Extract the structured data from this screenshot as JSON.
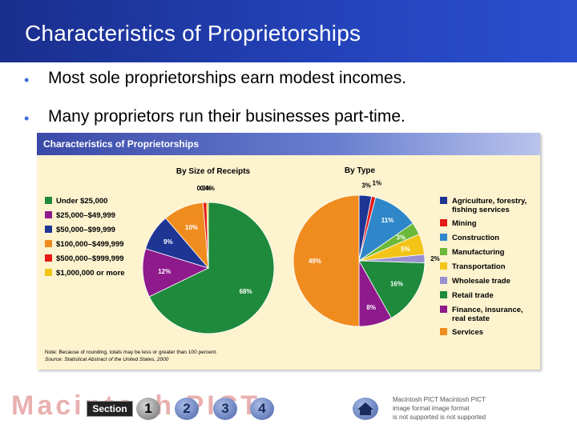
{
  "slide": {
    "title": "Characteristics of Proprietorships",
    "bullets": [
      "Most sole proprietorships earn modest incomes.",
      "Many proprietors run their businesses part-time."
    ]
  },
  "figure": {
    "title": "Characteristics of Proprietorships",
    "note": "Note: Because of rounding, totals may be less or greater than 100 percent.",
    "source": "Source: Statistical Abstract of the United States, 2000"
  },
  "chart_data": [
    {
      "type": "pie",
      "title": "By Size of Receipts",
      "legend_position": "left",
      "slices": [
        {
          "label": "Under $25,000",
          "value": 68,
          "display": "68%",
          "color": "#1f8a3c"
        },
        {
          "label": "$25,000–$49,999",
          "value": 12,
          "display": "12%",
          "color": "#8e1a8c"
        },
        {
          "label": "$50,000–$99,999",
          "value": 9,
          "display": "9%",
          "color": "#1e3594"
        },
        {
          "label": "$100,000–$499,999",
          "value": 10,
          "display": "10%",
          "color": "#f08c1e"
        },
        {
          "label": "$500,000–$999,999",
          "value": 0.9,
          "display": "0.9%",
          "color": "#e41b17"
        },
        {
          "label": "$1,000,000 or more",
          "value": 0.4,
          "display": "0.4%",
          "color": "#f2c418"
        }
      ]
    },
    {
      "type": "pie",
      "title": "By Type",
      "legend_position": "right",
      "slices": [
        {
          "label": "Agriculture, forestry, fishing services",
          "value": 3,
          "display": "3%",
          "color": "#1e3594"
        },
        {
          "label": "Mining",
          "value": 1,
          "display": "1%",
          "color": "#e41b17"
        },
        {
          "label": "Construction",
          "value": 11,
          "display": "11%",
          "color": "#2f86c8"
        },
        {
          "label": "Manufacturing",
          "value": 3,
          "display": "3%",
          "color": "#6cb83a"
        },
        {
          "label": "Transportation",
          "value": 5,
          "display": "5%",
          "color": "#f2c418"
        },
        {
          "label": "Wholesale trade",
          "value": 2,
          "display": "2%",
          "color": "#9a8fd0"
        },
        {
          "label": "Retail trade",
          "value": 16,
          "display": "16%",
          "color": "#1f8a3c"
        },
        {
          "label": "Finance, insurance, real estate",
          "value": 8,
          "display": "8%",
          "color": "#8e1a8c"
        },
        {
          "label": "Services",
          "value": 49,
          "display": "49%",
          "color": "#f08c1e"
        }
      ]
    }
  ],
  "footer": {
    "section_label": "Section",
    "section_buttons": [
      "1",
      "2",
      "3",
      "4"
    ],
    "active_section": "1",
    "ghost_text": "Macintosh PICT",
    "pict_lines": [
      "Macintosh PICT Macintosh PICT",
      "image format   image format",
      "is not supported is not supported"
    ]
  }
}
